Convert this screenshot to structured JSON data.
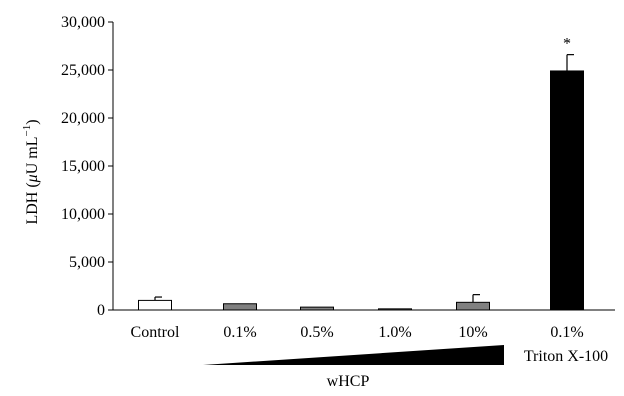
{
  "chart_data": {
    "type": "bar",
    "title": "",
    "ylabel_text": "LDH (",
    "ylabel_mu": "μ",
    "ylabel_unit": "U mL",
    "ylabel_exp": "−1",
    "ylabel_close": ")",
    "ylim": [
      0,
      30000
    ],
    "yticks": [
      0,
      5000,
      10000,
      15000,
      20000,
      25000,
      30000
    ],
    "ytick_labels": [
      "0",
      "5,000",
      "10,000",
      "15,000",
      "20,000",
      "25,000",
      "30,000"
    ],
    "categories": [
      "Control",
      "0.1%",
      "0.5%",
      "1.0%",
      "10%",
      "0.1%"
    ],
    "values": [
      1000,
      650,
      300,
      120,
      800,
      24900
    ],
    "errors": [
      350,
      0,
      0,
      0,
      800,
      1700
    ],
    "bar_colors": [
      "#ffffff",
      "#808080",
      "#808080",
      "#808080",
      "#808080",
      "#000000"
    ],
    "annotations": [
      {
        "category_index": 5,
        "text": "*"
      }
    ],
    "wedge_label": "wHCP",
    "triton_label": "Triton X-100"
  }
}
